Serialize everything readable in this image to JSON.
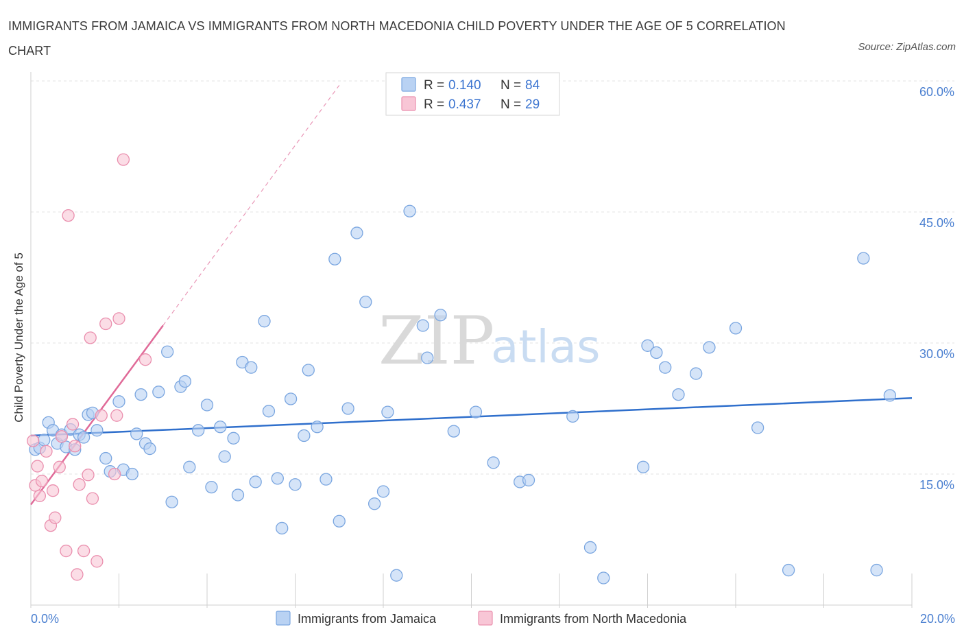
{
  "title": "IMMIGRANTS FROM JAMAICA VS IMMIGRANTS FROM NORTH MACEDONIA CHILD POVERTY UNDER THE AGE OF 5 CORRELATION CHART",
  "source": "Source: ZipAtlas.com",
  "watermark": {
    "zip": "ZIP",
    "atlas": "atlas"
  },
  "legend": {
    "r_label": "R =",
    "n_label": "N =",
    "jamaica": {
      "r": "0.140",
      "n": "84"
    },
    "macedonia": {
      "r": "0.437",
      "n": "29"
    }
  },
  "colors": {
    "jamaica_fill": "#b9d2f3",
    "jamaica_stroke": "#7aa6e0",
    "jamaica_line": "#2f6fcc",
    "macedonia_fill": "#f8c6d6",
    "macedonia_stroke": "#ea8fae",
    "macedonia_line": "#e06a98",
    "grid": "#e3e3e3",
    "tick_text": "#4a7fd0"
  },
  "chart_data": {
    "type": "scatter",
    "title": "IMMIGRANTS FROM JAMAICA VS IMMIGRANTS FROM NORTH MACEDONIA CHILD POVERTY UNDER THE AGE OF 5 CORRELATION CHART",
    "xlabel": "",
    "ylabel": "Child Poverty Under the Age of 5",
    "xlim": [
      0,
      20
    ],
    "ylim": [
      0,
      60
    ],
    "x_tick_labels": [
      "0.0%",
      "20.0%"
    ],
    "y_ticks": [
      15,
      30,
      45,
      60
    ],
    "y_tick_labels": [
      "15.0%",
      "30.0%",
      "45.0%",
      "60.0%"
    ],
    "grid": true,
    "legend_position": "top-center",
    "series": [
      {
        "name": "Immigrants from Jamaica",
        "trend": {
          "x": [
            0,
            20
          ],
          "y": [
            19.4,
            23.7
          ]
        },
        "x": [
          0.1,
          0.2,
          0.3,
          0.4,
          0.5,
          0.6,
          0.7,
          0.8,
          0.9,
          1.0,
          1.1,
          1.2,
          1.3,
          1.4,
          1.5,
          1.7,
          1.8,
          2.0,
          2.1,
          2.3,
          2.4,
          2.5,
          2.6,
          2.7,
          2.9,
          3.1,
          3.2,
          3.4,
          3.5,
          3.6,
          3.8,
          4.0,
          4.1,
          4.3,
          4.4,
          4.6,
          4.7,
          4.8,
          5.0,
          5.1,
          5.3,
          5.4,
          5.6,
          5.7,
          5.9,
          6.0,
          6.2,
          6.3,
          6.5,
          6.7,
          6.9,
          7.0,
          7.2,
          7.4,
          7.6,
          7.8,
          8.0,
          8.1,
          8.3,
          8.6,
          8.9,
          9.0,
          9.3,
          9.6,
          10.1,
          10.5,
          11.1,
          11.3,
          12.3,
          12.7,
          13.0,
          13.9,
          14.0,
          14.2,
          14.4,
          14.7,
          15.1,
          15.4,
          16.0,
          16.5,
          17.2,
          18.9,
          19.2,
          19.5
        ],
        "y": [
          17.8,
          18.0,
          18.9,
          20.9,
          20.0,
          18.5,
          19.5,
          18.1,
          20.1,
          17.8,
          19.5,
          19.2,
          21.8,
          22.0,
          20.0,
          16.8,
          15.3,
          23.3,
          15.5,
          15.0,
          19.6,
          24.1,
          18.5,
          17.9,
          24.4,
          29.0,
          11.8,
          25.0,
          25.6,
          15.8,
          20.0,
          22.9,
          13.5,
          20.4,
          17.0,
          19.1,
          12.6,
          27.8,
          27.2,
          14.1,
          32.5,
          22.2,
          14.5,
          8.8,
          23.6,
          13.8,
          19.4,
          26.9,
          20.4,
          14.4,
          39.6,
          9.6,
          22.5,
          42.6,
          34.7,
          11.6,
          13.0,
          22.1,
          3.4,
          45.1,
          32.0,
          28.3,
          33.2,
          19.9,
          22.1,
          16.3,
          14.1,
          14.3,
          21.6,
          6.6,
          3.1,
          15.8,
          29.7,
          28.9,
          27.2,
          24.1,
          26.5,
          29.5,
          31.7,
          20.3,
          4.0,
          39.7,
          4.0,
          24.0
        ]
      },
      {
        "name": "Immigrants from North Macedonia",
        "trend": {
          "x": [
            0,
            3.0
          ],
          "y": [
            11.5,
            32.0
          ]
        },
        "trend_extension": {
          "x": [
            3.0,
            7.0
          ],
          "y": [
            32.0,
            59.5
          ]
        },
        "x": [
          0.05,
          0.1,
          0.15,
          0.2,
          0.25,
          0.35,
          0.45,
          0.5,
          0.55,
          0.65,
          0.7,
          0.8,
          0.85,
          0.95,
          1.0,
          1.05,
          1.1,
          1.2,
          1.3,
          1.35,
          1.4,
          1.5,
          1.6,
          1.7,
          1.9,
          1.95,
          2.0,
          2.1,
          2.6
        ],
        "y": [
          18.8,
          13.7,
          15.9,
          12.5,
          14.2,
          17.6,
          9.1,
          13.1,
          10.0,
          15.8,
          19.3,
          6.2,
          44.6,
          20.7,
          18.2,
          3.5,
          13.8,
          6.2,
          14.9,
          30.6,
          12.2,
          5.0,
          21.7,
          32.2,
          15.0,
          21.7,
          32.8,
          51.0,
          28.1
        ]
      }
    ]
  },
  "bottom_legend": {
    "jamaica": "Immigrants from Jamaica",
    "macedonia": "Immigrants from North Macedonia"
  }
}
